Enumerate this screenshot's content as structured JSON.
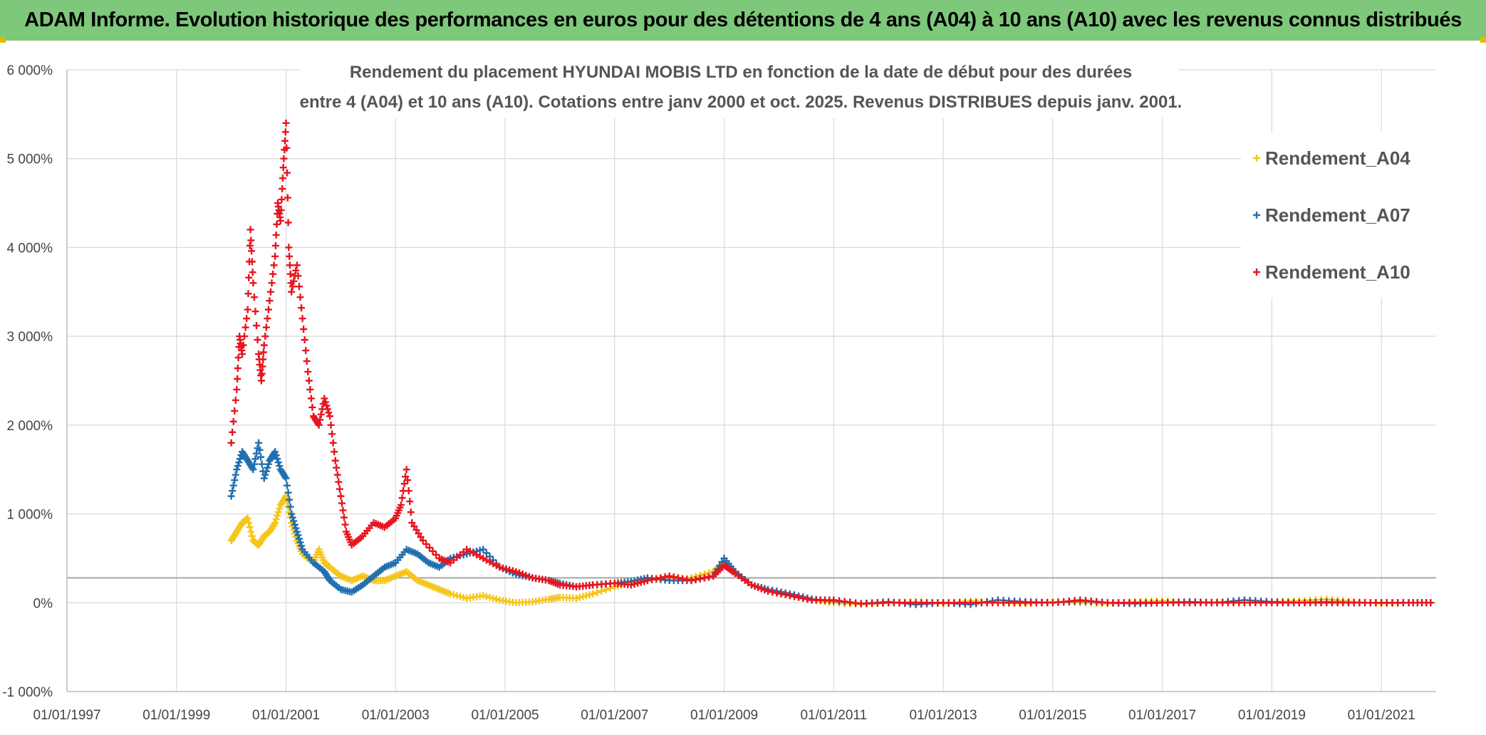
{
  "banner": {
    "title": "ADAM Informe. Evolution historique des performances en euros pour des détentions de 4 ans (A04) à 10 ans (A10) avec les revenus connus distribués"
  },
  "chart_data": {
    "type": "scatter",
    "title_line1": "Rendement du placement HYUNDAI MOBIS LTD en fonction de la date de début pour des durées",
    "title_line2": "entre 4 (A04) et 10 ans (A10). Cotations entre janv 2000 et oct. 2025. Revenus DISTRIBUES depuis janv. 2001.",
    "xlabel": "",
    "ylabel": "",
    "x_ticks": [
      "01/01/1997",
      "01/01/1999",
      "01/01/2001",
      "01/01/2003",
      "01/01/2005",
      "01/01/2007",
      "01/01/2009",
      "01/01/2011",
      "01/01/2013",
      "01/01/2015",
      "01/01/2017",
      "01/01/2019",
      "01/01/2021"
    ],
    "xlim": [
      1997.0,
      2022.0
    ],
    "y_ticks": [
      "-1 000%",
      "0%",
      "1 000%",
      "2 000%",
      "3 000%",
      "4 000%",
      "5 000%",
      "6 000%"
    ],
    "ylim": [
      -1000,
      6000
    ],
    "reference_line_y": 280,
    "legend_position": "top-right",
    "series": [
      {
        "name": "Rendement_A04",
        "color": "#f5c518",
        "points": [
          [
            2000.0,
            700
          ],
          [
            2000.1,
            800
          ],
          [
            2000.2,
            900
          ],
          [
            2000.3,
            950
          ],
          [
            2000.4,
            700
          ],
          [
            2000.5,
            650
          ],
          [
            2000.6,
            750
          ],
          [
            2000.7,
            800
          ],
          [
            2000.8,
            900
          ],
          [
            2000.9,
            1100
          ],
          [
            2001.0,
            1200
          ],
          [
            2001.1,
            900
          ],
          [
            2001.2,
            700
          ],
          [
            2001.3,
            550
          ],
          [
            2001.5,
            450
          ],
          [
            2001.6,
            600
          ],
          [
            2001.7,
            450
          ],
          [
            2001.8,
            400
          ],
          [
            2002.0,
            300
          ],
          [
            2002.2,
            250
          ],
          [
            2002.4,
            300
          ],
          [
            2002.6,
            250
          ],
          [
            2002.8,
            250
          ],
          [
            2003.0,
            300
          ],
          [
            2003.2,
            350
          ],
          [
            2003.4,
            250
          ],
          [
            2003.6,
            200
          ],
          [
            2003.8,
            150
          ],
          [
            2004.0,
            100
          ],
          [
            2004.3,
            50
          ],
          [
            2004.6,
            80
          ],
          [
            2004.9,
            30
          ],
          [
            2005.2,
            0
          ],
          [
            2005.5,
            10
          ],
          [
            2005.8,
            40
          ],
          [
            2006.0,
            60
          ],
          [
            2006.3,
            50
          ],
          [
            2006.6,
            100
          ],
          [
            2007.0,
            180
          ],
          [
            2007.3,
            230
          ],
          [
            2007.6,
            260
          ],
          [
            2008.0,
            260
          ],
          [
            2008.4,
            280
          ],
          [
            2008.8,
            350
          ],
          [
            2009.0,
            450
          ],
          [
            2009.2,
            350
          ],
          [
            2009.5,
            200
          ],
          [
            2009.8,
            150
          ],
          [
            2010.2,
            80
          ],
          [
            2010.6,
            30
          ],
          [
            2011.0,
            0
          ],
          [
            2011.5,
            -20
          ],
          [
            2012.0,
            0
          ],
          [
            2012.5,
            10
          ],
          [
            2013.0,
            -10
          ],
          [
            2013.5,
            20
          ],
          [
            2014.0,
            0
          ],
          [
            2014.5,
            -10
          ],
          [
            2015.0,
            10
          ],
          [
            2015.5,
            0
          ],
          [
            2016.0,
            -10
          ],
          [
            2016.5,
            10
          ],
          [
            2017.0,
            20
          ],
          [
            2017.5,
            0
          ],
          [
            2018.0,
            10
          ],
          [
            2018.5,
            0
          ],
          [
            2019.0,
            10
          ],
          [
            2019.5,
            20
          ],
          [
            2020.0,
            40
          ],
          [
            2020.5,
            10
          ],
          [
            2021.0,
            -10
          ],
          [
            2021.5,
            0
          ],
          [
            2021.9,
            0
          ]
        ]
      },
      {
        "name": "Rendement_A07",
        "color": "#1f6fb0",
        "points": [
          [
            2000.0,
            1200
          ],
          [
            2000.1,
            1500
          ],
          [
            2000.2,
            1700
          ],
          [
            2000.3,
            1600
          ],
          [
            2000.4,
            1500
          ],
          [
            2000.5,
            1800
          ],
          [
            2000.6,
            1400
          ],
          [
            2000.7,
            1600
          ],
          [
            2000.8,
            1700
          ],
          [
            2000.9,
            1500
          ],
          [
            2001.0,
            1400
          ],
          [
            2001.1,
            1000
          ],
          [
            2001.2,
            800
          ],
          [
            2001.3,
            600
          ],
          [
            2001.5,
            450
          ],
          [
            2001.7,
            350
          ],
          [
            2001.8,
            250
          ],
          [
            2002.0,
            150
          ],
          [
            2002.2,
            120
          ],
          [
            2002.4,
            200
          ],
          [
            2002.6,
            300
          ],
          [
            2002.8,
            400
          ],
          [
            2003.0,
            450
          ],
          [
            2003.2,
            600
          ],
          [
            2003.4,
            550
          ],
          [
            2003.6,
            450
          ],
          [
            2003.8,
            400
          ],
          [
            2004.0,
            500
          ],
          [
            2004.3,
            550
          ],
          [
            2004.6,
            600
          ],
          [
            2004.9,
            400
          ],
          [
            2005.2,
            320
          ],
          [
            2005.5,
            280
          ],
          [
            2005.8,
            250
          ],
          [
            2006.0,
            220
          ],
          [
            2006.3,
            180
          ],
          [
            2006.6,
            200
          ],
          [
            2007.0,
            220
          ],
          [
            2007.3,
            240
          ],
          [
            2007.6,
            280
          ],
          [
            2008.0,
            250
          ],
          [
            2008.4,
            250
          ],
          [
            2008.8,
            300
          ],
          [
            2009.0,
            500
          ],
          [
            2009.2,
            350
          ],
          [
            2009.5,
            200
          ],
          [
            2009.8,
            150
          ],
          [
            2010.2,
            100
          ],
          [
            2010.6,
            40
          ],
          [
            2011.0,
            20
          ],
          [
            2011.5,
            -10
          ],
          [
            2012.0,
            10
          ],
          [
            2012.5,
            -20
          ],
          [
            2013.0,
            0
          ],
          [
            2013.5,
            -20
          ],
          [
            2014.0,
            30
          ],
          [
            2014.5,
            10
          ],
          [
            2015.0,
            0
          ],
          [
            2015.5,
            20
          ],
          [
            2016.0,
            0
          ],
          [
            2016.5,
            -10
          ],
          [
            2017.0,
            0
          ],
          [
            2017.5,
            10
          ],
          [
            2018.0,
            0
          ],
          [
            2018.5,
            30
          ],
          [
            2019.0,
            10
          ],
          [
            2019.5,
            0
          ],
          [
            2020.0,
            10
          ],
          [
            2020.5,
            0
          ],
          [
            2021.0,
            0
          ],
          [
            2021.5,
            0
          ],
          [
            2021.9,
            0
          ]
        ]
      },
      {
        "name": "Rendement_A10",
        "color": "#e8141e",
        "points": [
          [
            2000.0,
            1800
          ],
          [
            2000.1,
            2400
          ],
          [
            2000.15,
            3000
          ],
          [
            2000.2,
            2800
          ],
          [
            2000.3,
            3300
          ],
          [
            2000.35,
            4200
          ],
          [
            2000.4,
            3600
          ],
          [
            2000.5,
            2800
          ],
          [
            2000.55,
            2500
          ],
          [
            2000.6,
            2900
          ],
          [
            2000.7,
            3400
          ],
          [
            2000.8,
            3900
          ],
          [
            2000.85,
            4500
          ],
          [
            2000.9,
            4300
          ],
          [
            2000.95,
            4900
          ],
          [
            2001.0,
            5400
          ],
          [
            2001.05,
            4000
          ],
          [
            2001.1,
            3500
          ],
          [
            2001.2,
            3800
          ],
          [
            2001.3,
            3200
          ],
          [
            2001.4,
            2600
          ],
          [
            2001.5,
            2100
          ],
          [
            2001.6,
            2000
          ],
          [
            2001.7,
            2300
          ],
          [
            2001.8,
            2100
          ],
          [
            2001.9,
            1600
          ],
          [
            2002.0,
            1200
          ],
          [
            2002.1,
            800
          ],
          [
            2002.2,
            650
          ],
          [
            2002.4,
            750
          ],
          [
            2002.6,
            900
          ],
          [
            2002.8,
            850
          ],
          [
            2003.0,
            950
          ],
          [
            2003.1,
            1100
          ],
          [
            2003.2,
            1500
          ],
          [
            2003.3,
            900
          ],
          [
            2003.5,
            700
          ],
          [
            2003.8,
            500
          ],
          [
            2004.0,
            450
          ],
          [
            2004.3,
            600
          ],
          [
            2004.6,
            500
          ],
          [
            2004.9,
            400
          ],
          [
            2005.2,
            350
          ],
          [
            2005.5,
            280
          ],
          [
            2005.8,
            250
          ],
          [
            2006.0,
            200
          ],
          [
            2006.3,
            180
          ],
          [
            2006.6,
            200
          ],
          [
            2007.0,
            220
          ],
          [
            2007.3,
            200
          ],
          [
            2007.6,
            250
          ],
          [
            2008.0,
            300
          ],
          [
            2008.4,
            250
          ],
          [
            2008.8,
            300
          ],
          [
            2009.0,
            420
          ],
          [
            2009.2,
            330
          ],
          [
            2009.5,
            200
          ],
          [
            2009.8,
            130
          ],
          [
            2010.2,
            80
          ],
          [
            2010.6,
            30
          ],
          [
            2011.0,
            30
          ],
          [
            2011.5,
            -10
          ],
          [
            2012.0,
            0
          ],
          [
            2012.5,
            0
          ],
          [
            2013.0,
            0
          ],
          [
            2013.5,
            0
          ],
          [
            2014.0,
            0
          ],
          [
            2014.5,
            0
          ],
          [
            2015.0,
            0
          ],
          [
            2015.5,
            30
          ],
          [
            2016.0,
            0
          ],
          [
            2016.5,
            0
          ],
          [
            2017.0,
            0
          ],
          [
            2017.5,
            0
          ],
          [
            2018.0,
            0
          ],
          [
            2018.5,
            0
          ],
          [
            2019.0,
            0
          ],
          [
            2019.5,
            0
          ],
          [
            2020.0,
            0
          ],
          [
            2020.5,
            0
          ],
          [
            2021.0,
            0
          ],
          [
            2021.5,
            0
          ],
          [
            2021.9,
            0
          ]
        ]
      }
    ]
  }
}
